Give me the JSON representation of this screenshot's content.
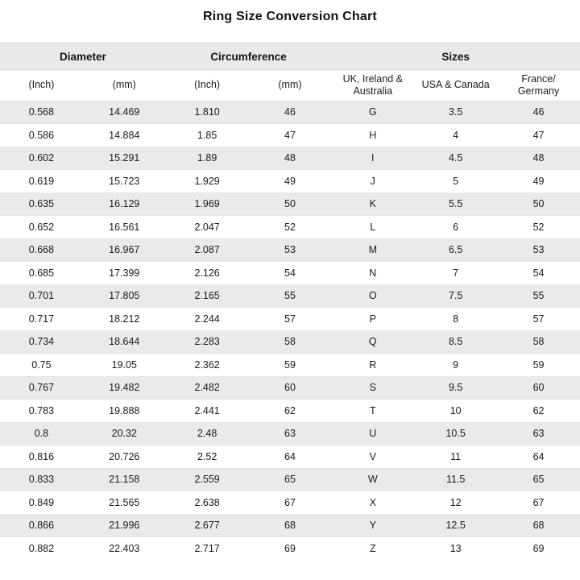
{
  "page": {
    "title": "Ring Size Conversion Chart"
  },
  "colors": {
    "header_band_bg": "#e9e9e9",
    "row_alt_bg": "#eaeaea",
    "row_bg": "#ffffff",
    "text": "#1b1b1b",
    "row_separator": "#e6e6e6"
  },
  "table": {
    "groups": [
      {
        "label": "Diameter",
        "colspan": 2
      },
      {
        "label": "Circumference",
        "colspan": 2
      },
      {
        "label": "Sizes",
        "colspan": 3
      }
    ],
    "subheaders": [
      "(Inch)",
      "(mm)",
      "(Inch)",
      "(mm)",
      "UK, Ireland & Australia",
      "USA & Canada",
      "France/ Germany"
    ]
  },
  "chart_data": {
    "type": "table",
    "title": "Ring Size Conversion Chart",
    "column_groups": [
      "Diameter",
      "Diameter",
      "Circumference",
      "Circumference",
      "Sizes",
      "Sizes",
      "Sizes"
    ],
    "columns": [
      "Diameter (Inch)",
      "Diameter (mm)",
      "Circumference (Inch)",
      "Circumference (mm)",
      "UK, Ireland & Australia",
      "USA & Canada",
      "France/ Germany"
    ],
    "rows": [
      [
        "0.568",
        "14.469",
        "1.810",
        "46",
        "G",
        "3.5",
        "46"
      ],
      [
        "0.586",
        "14.884",
        "1.85",
        "47",
        "H",
        "4",
        "47"
      ],
      [
        "0.602",
        "15.291",
        "1.89",
        "48",
        "I",
        "4.5",
        "48"
      ],
      [
        "0.619",
        "15.723",
        "1.929",
        "49",
        "J",
        "5",
        "49"
      ],
      [
        "0.635",
        "16.129",
        "1.969",
        "50",
        "K",
        "5.5",
        "50"
      ],
      [
        "0.652",
        "16.561",
        "2.047",
        "52",
        "L",
        "6",
        "52"
      ],
      [
        "0.668",
        "16.967",
        "2.087",
        "53",
        "M",
        "6.5",
        "53"
      ],
      [
        "0.685",
        "17.399",
        "2.126",
        "54",
        "N",
        "7",
        "54"
      ],
      [
        "0.701",
        "17.805",
        "2.165",
        "55",
        "O",
        "7.5",
        "55"
      ],
      [
        "0.717",
        "18.212",
        "2.244",
        "57",
        "P",
        "8",
        "57"
      ],
      [
        "0.734",
        "18.644",
        "2.283",
        "58",
        "Q",
        "8.5",
        "58"
      ],
      [
        "0.75",
        "19.05",
        "2.362",
        "59",
        "R",
        "9",
        "59"
      ],
      [
        "0.767",
        "19.482",
        "2.482",
        "60",
        "S",
        "9.5",
        "60"
      ],
      [
        "0.783",
        "19.888",
        "2.441",
        "62",
        "T",
        "10",
        "62"
      ],
      [
        "0.8",
        "20.32",
        "2.48",
        "63",
        "U",
        "10.5",
        "63"
      ],
      [
        "0.816",
        "20.726",
        "2.52",
        "64",
        "V",
        "11",
        "64"
      ],
      [
        "0.833",
        "21.158",
        "2.559",
        "65",
        "W",
        "11.5",
        "65"
      ],
      [
        "0.849",
        "21.565",
        "2.638",
        "67",
        "X",
        "12",
        "67"
      ],
      [
        "0.866",
        "21.996",
        "2.677",
        "68",
        "Y",
        "12.5",
        "68"
      ],
      [
        "0.882",
        "22.403",
        "2.717",
        "69",
        "Z",
        "13",
        "69"
      ]
    ]
  }
}
